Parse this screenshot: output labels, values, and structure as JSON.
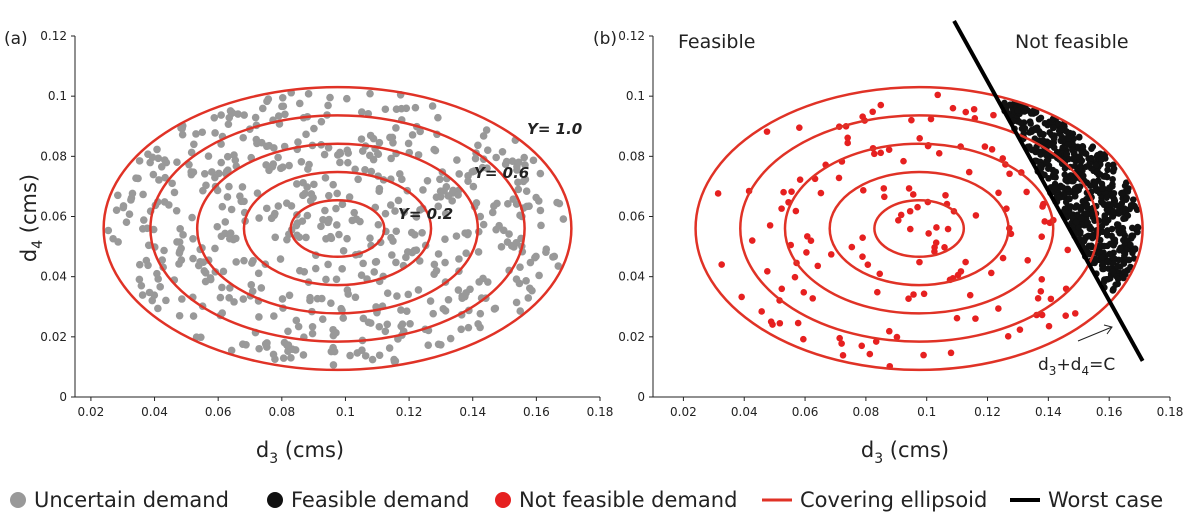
{
  "chart_data": [
    {
      "type": "scatter",
      "panel_label": "(a)",
      "xlabel_main": "d",
      "xlabel_sub": "3",
      "xlabel_unit": " (cms)",
      "ylabel_main": "d",
      "ylabel_sub": "4",
      "ylabel_unit": " (cms)",
      "xlim": [
        0.015,
        0.18
      ],
      "ylim": [
        0,
        0.12
      ],
      "x_ticks": [
        "0.02",
        "0.04",
        "0.06",
        "0.08",
        "0.1",
        "0.12",
        "0.14",
        "0.16",
        "0.18"
      ],
      "y_ticks": [
        "0",
        "0.02",
        "0.04",
        "0.06",
        "0.08",
        "0.1",
        "0.12"
      ],
      "grid": false,
      "ellipses": {
        "center": [
          0.0975,
          0.056
        ],
        "outer_semi_axes": [
          0.0735,
          0.047
        ],
        "levels": [
          0.2,
          0.6,
          1.0
        ],
        "extra_rings": [
          0.4,
          0.8
        ],
        "color": "#e03226"
      },
      "gamma_labels": [
        "Υ= 1.0",
        "Υ= 0.6",
        "Υ= 0.2"
      ],
      "series": [
        {
          "name": "Uncertain demand",
          "color": "#999999",
          "count": 620
        }
      ]
    },
    {
      "type": "scatter",
      "panel_label": "(b)",
      "xlabel_main": "d",
      "xlabel_sub": "3",
      "xlabel_unit": " (cms)",
      "ylabel_main": "",
      "ylabel_sub": "",
      "ylabel_unit": "",
      "xlim": [
        0.01,
        0.18
      ],
      "ylim": [
        0,
        0.12
      ],
      "x_ticks": [
        "0.02",
        "0.04",
        "0.06",
        "0.08",
        "0.1",
        "0.12",
        "0.14",
        "0.16",
        "0.18"
      ],
      "y_ticks": [
        "0",
        "0.02",
        "0.04",
        "0.06",
        "0.08",
        "0.1",
        "0.12"
      ],
      "grid": false,
      "region_labels": [
        "Feasible",
        "Not feasible"
      ],
      "ellipses": {
        "center": [
          0.0975,
          0.056
        ],
        "outer_semi_axes": [
          0.0735,
          0.047
        ],
        "levels": [
          0.2,
          0.6,
          1.0
        ],
        "extra_rings": [
          0.4,
          0.8
        ],
        "color": "#e03226"
      },
      "worst_case_line": {
        "x": [
          0.109,
          0.171
        ],
        "y": [
          0.125,
          0.012
        ],
        "color": "#000000",
        "label_main": "d",
        "label_sub1": "3",
        "label_plus": "+d",
        "label_sub2": "4",
        "label_tail": "=C"
      },
      "series": [
        {
          "name": "Feasible demand",
          "color": "#111111",
          "count": 620
        },
        {
          "name": "Not feasible demand",
          "color": "#e62020",
          "count": 150
        }
      ]
    }
  ],
  "legend": [
    {
      "label": "Uncertain demand",
      "marker": "dot",
      "color": "#999999"
    },
    {
      "label": "Feasible demand",
      "marker": "dot",
      "color": "#111111"
    },
    {
      "label": "Not feasible demand",
      "marker": "dot",
      "color": "#e62020"
    },
    {
      "label": "Covering ellipsoid",
      "marker": "line",
      "color": "#e03226"
    },
    {
      "label": "Worst case",
      "marker": "line",
      "color": "#000000"
    }
  ]
}
